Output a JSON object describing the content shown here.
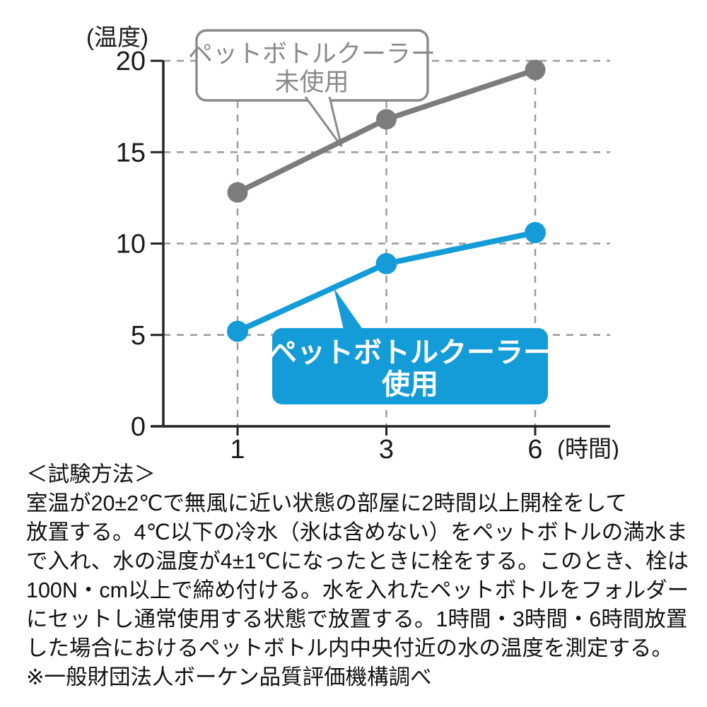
{
  "chart_data": {
    "type": "line",
    "title": "",
    "ylabel": "(温度)",
    "xlabel": "(時間)",
    "categories": [
      "1",
      "3",
      "6"
    ],
    "y_ticks": [
      0,
      5,
      10,
      15,
      20
    ],
    "ylim": [
      0,
      20
    ],
    "grid": "dashed",
    "legend_position": "callouts-on-plot",
    "series": [
      {
        "name": "ペットボトルクーラー未使用",
        "values": [
          12.8,
          16.8,
          19.5
        ],
        "color": "#7c7c7c",
        "callout": {
          "lines": [
            "ペットボトルクーラー",
            "未使用"
          ],
          "fill": "#ffffff",
          "border": "#8a8a8a",
          "text_color": "#8a8a8a"
        }
      },
      {
        "name": "ペットボトルクーラー使用",
        "values": [
          5.2,
          8.9,
          10.6
        ],
        "color": "#149cd8",
        "callout": {
          "lines": [
            "ペットボトルクーラー",
            "使用"
          ],
          "fill": "#149cd8",
          "border": "#149cd8",
          "text_color": "#ffffff"
        }
      }
    ],
    "axis_color": "#222222",
    "gridline_color": "#9a9a9a",
    "tick_label_color": "#1a1a1a"
  },
  "method": {
    "heading": "＜試験方法＞",
    "lines": [
      "室温が20±2℃で無風に近い状態の部屋に2時間以上開栓をして",
      "放置する。4℃以下の冷水（氷は含めない）をペットボトルの満水ま",
      "で入れ、水の温度が4±1℃になったときに栓をする。このとき、栓は",
      "100N・cm以上で締め付ける。水を入れたペットボトルをフォルダー",
      "にセットし通常使用する状態で放置する。1時間・3時間・6時間放置",
      "した場合におけるペットボトル内中央付近の水の温度を測定する。"
    ],
    "note": "※一般財団法人ボーケン品質評価機構調べ"
  }
}
